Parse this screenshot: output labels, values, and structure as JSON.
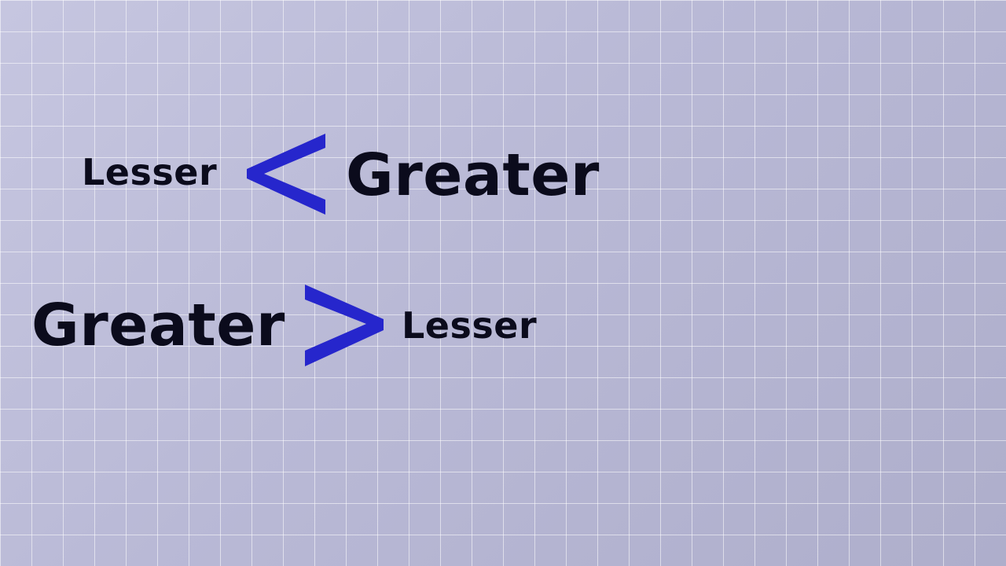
{
  "rows": [
    {
      "left": "Lesser",
      "symbol": "<",
      "right": "Greater"
    },
    {
      "left": "Greater",
      "symbol": ">",
      "right": "Lesser"
    }
  ],
  "icons": {
    "less_than": "less-than-icon",
    "greater_than": "greater-than-icon"
  },
  "colors": {
    "symbol": "#2626cc",
    "text": "#0b0b1c",
    "background": "#bcbcd8",
    "grid": "#ffffff"
  }
}
